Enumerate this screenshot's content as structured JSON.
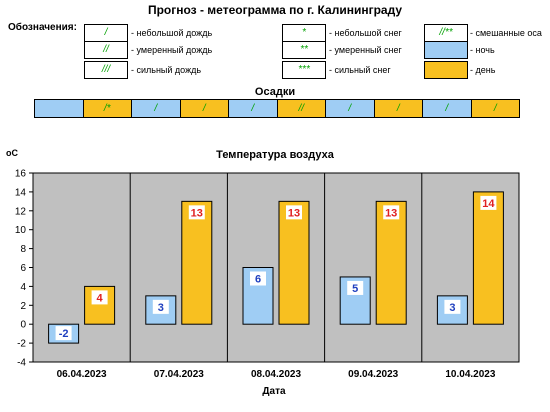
{
  "header": {
    "title": "Прогноз - метеограмма по г. Калининграду"
  },
  "legend": {
    "heading": "Обозначения:",
    "items": [
      {
        "symbol": "/",
        "label": "- небольшой дождь"
      },
      {
        "symbol": "//",
        "label": "- умеренный дождь"
      },
      {
        "symbol": "///",
        "label": "- сильный дождь"
      },
      {
        "symbol": "*",
        "label": "- небольшой снег"
      },
      {
        "symbol": "**",
        "label": "- умеренный снег"
      },
      {
        "symbol": "***",
        "label": "- сильный снег"
      },
      {
        "symbol": "//**",
        "label": "- смешанные оса"
      },
      {
        "symbol": "",
        "label": "- ночь",
        "color": "#9fcdf4"
      },
      {
        "symbol": "",
        "label": "- день",
        "color": "#f8c020"
      }
    ]
  },
  "precipitation": {
    "title": "Осадки",
    "cells": [
      {
        "period": "night",
        "symbol": ""
      },
      {
        "period": "day",
        "symbol": "/*"
      },
      {
        "period": "night",
        "symbol": "/"
      },
      {
        "period": "day",
        "symbol": "/"
      },
      {
        "period": "night",
        "symbol": "/"
      },
      {
        "period": "day",
        "symbol": "//"
      },
      {
        "period": "night",
        "symbol": "/"
      },
      {
        "period": "day",
        "symbol": "/"
      },
      {
        "period": "night",
        "symbol": "/"
      },
      {
        "period": "day",
        "symbol": "/"
      }
    ]
  },
  "colors": {
    "night": "#9fcdf4",
    "day": "#f8c020",
    "plot_bg": "#c0c0c0",
    "precip_symbol": "#00a000",
    "night_label": "#1f3fbf",
    "day_label": "#e02020"
  },
  "chart_data": {
    "type": "bar",
    "title": "Температура воздуха",
    "ylabel": "оС",
    "xlabel": "Дата",
    "categories": [
      "06.04.2023",
      "07.04.2023",
      "08.04.2023",
      "09.04.2023",
      "10.04.2023"
    ],
    "series": [
      {
        "values": [
          -2,
          3,
          6,
          5,
          3
        ]
      },
      {
        "values": [
          4,
          13,
          13,
          13,
          14
        ]
      }
    ],
    "ylim": [
      -4,
      16
    ],
    "yticks": [
      "-4",
      "-2",
      "0",
      "2",
      "4",
      "6",
      "8",
      "10",
      "12",
      "14",
      "16"
    ],
    "grid": false
  }
}
